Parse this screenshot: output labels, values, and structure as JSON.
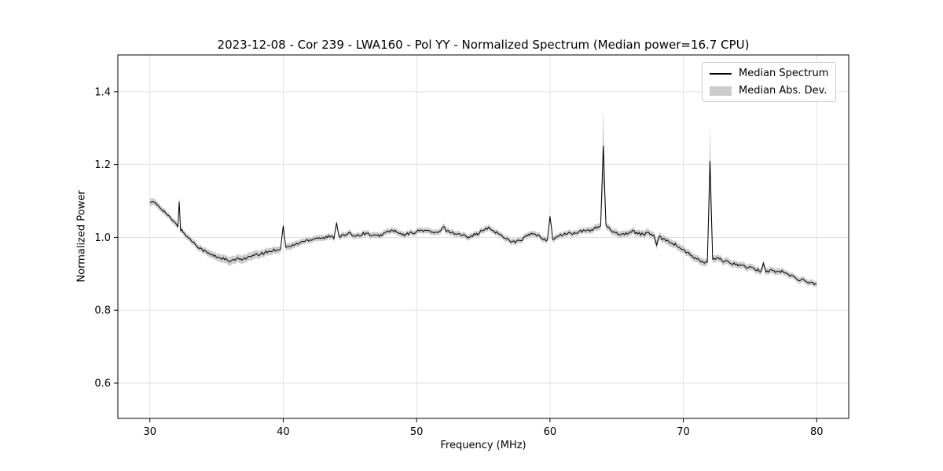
{
  "chart_data": {
    "type": "line",
    "title": "2023-12-08 - Cor 239 - LWA160 - Pol YY - Normalized Spectrum (Median power=16.7 CPU)",
    "xlabel": "Frequency (MHz)",
    "ylabel": "Normalized Power",
    "xlim": [
      27.6,
      82.4
    ],
    "ylim": [
      0.503,
      1.501
    ],
    "xticks": [
      30,
      40,
      50,
      60,
      70,
      80
    ],
    "xtick_labels": [
      "30",
      "40",
      "50",
      "60",
      "70",
      "80"
    ],
    "yticks": [
      0.6,
      0.8,
      1.0,
      1.2,
      1.4
    ],
    "ytick_labels": [
      "0.6",
      "0.8",
      "1.0",
      "1.2",
      "1.4"
    ],
    "grid": true,
    "line_color": "#000000",
    "band_color": "#cccccc",
    "grid_color": "#dcdcdc",
    "noise_amplitude": 0.004,
    "legend": {
      "position": "upper right",
      "entries": [
        {
          "label": "Median Spectrum",
          "type": "line",
          "color": "#000000"
        },
        {
          "label": "Median Abs. Dev.",
          "type": "patch",
          "color": "#cccccc"
        }
      ]
    },
    "series": [
      {
        "name": "Median Spectrum",
        "points": [
          [
            30.0,
            1.1,
            0.01
          ],
          [
            30.3,
            1.095,
            0.009
          ],
          [
            30.6,
            1.088,
            0.009
          ],
          [
            31.0,
            1.075,
            0.008
          ],
          [
            31.4,
            1.058,
            0.008
          ],
          [
            31.8,
            1.042,
            0.008
          ],
          [
            32.0,
            1.034,
            0.008
          ],
          [
            32.1,
            1.03,
            0.008
          ],
          [
            32.2,
            1.1,
            0.015
          ],
          [
            32.3,
            1.022,
            0.008
          ],
          [
            32.6,
            1.01,
            0.008
          ],
          [
            33.0,
            0.995,
            0.008
          ],
          [
            33.4,
            0.982,
            0.008
          ],
          [
            33.8,
            0.97,
            0.009
          ],
          [
            34.2,
            0.96,
            0.009
          ],
          [
            34.6,
            0.952,
            0.01
          ],
          [
            35.0,
            0.947,
            0.01
          ],
          [
            35.4,
            0.943,
            0.011
          ],
          [
            35.8,
            0.938,
            0.011
          ],
          [
            36.0,
            0.93,
            0.012
          ],
          [
            36.2,
            0.938,
            0.011
          ],
          [
            36.6,
            0.94,
            0.011
          ],
          [
            37.0,
            0.942,
            0.011
          ],
          [
            37.4,
            0.945,
            0.011
          ],
          [
            37.8,
            0.95,
            0.011
          ],
          [
            38.2,
            0.953,
            0.01
          ],
          [
            38.6,
            0.958,
            0.01
          ],
          [
            39.0,
            0.962,
            0.01
          ],
          [
            39.4,
            0.966,
            0.01
          ],
          [
            39.8,
            0.969,
            0.009
          ],
          [
            40.0,
            1.03,
            0.01
          ],
          [
            40.2,
            0.972,
            0.009
          ],
          [
            40.6,
            0.976,
            0.009
          ],
          [
            41.0,
            0.982,
            0.009
          ],
          [
            41.4,
            0.988,
            0.008
          ],
          [
            41.8,
            0.992,
            0.008
          ],
          [
            42.2,
            0.996,
            0.008
          ],
          [
            42.6,
            1.0,
            0.008
          ],
          [
            43.0,
            0.998,
            0.008
          ],
          [
            43.4,
            1.002,
            0.008
          ],
          [
            43.8,
            1.0,
            0.008
          ],
          [
            44.0,
            1.04,
            0.008
          ],
          [
            44.2,
            1.003,
            0.008
          ],
          [
            44.6,
            1.006,
            0.008
          ],
          [
            45.0,
            1.01,
            0.008
          ],
          [
            45.4,
            1.005,
            0.008
          ],
          [
            45.8,
            1.008,
            0.008
          ],
          [
            46.2,
            1.012,
            0.008
          ],
          [
            46.6,
            1.006,
            0.008
          ],
          [
            47.0,
            1.003,
            0.008
          ],
          [
            47.4,
            1.008,
            0.008
          ],
          [
            47.8,
            1.015,
            0.008
          ],
          [
            48.2,
            1.02,
            0.008
          ],
          [
            48.6,
            1.012,
            0.008
          ],
          [
            49.0,
            1.006,
            0.008
          ],
          [
            49.4,
            1.01,
            0.008
          ],
          [
            49.8,
            1.014,
            0.008
          ],
          [
            50.2,
            1.018,
            0.008
          ],
          [
            50.6,
            1.02,
            0.008
          ],
          [
            51.0,
            1.016,
            0.008
          ],
          [
            51.4,
            1.012,
            0.008
          ],
          [
            51.8,
            1.015,
            0.008
          ],
          [
            52.0,
            1.032,
            0.009
          ],
          [
            52.2,
            1.02,
            0.008
          ],
          [
            52.6,
            1.014,
            0.008
          ],
          [
            53.0,
            1.01,
            0.008
          ],
          [
            53.4,
            1.006,
            0.008
          ],
          [
            53.8,
            1.003,
            0.008
          ],
          [
            54.2,
            1.006,
            0.008
          ],
          [
            54.6,
            1.01,
            0.008
          ],
          [
            55.0,
            1.02,
            0.008
          ],
          [
            55.4,
            1.025,
            0.008
          ],
          [
            55.8,
            1.018,
            0.008
          ],
          [
            56.2,
            1.008,
            0.008
          ],
          [
            56.6,
            1.0,
            0.008
          ],
          [
            57.0,
            0.992,
            0.008
          ],
          [
            57.4,
            0.987,
            0.008
          ],
          [
            57.8,
            0.992,
            0.008
          ],
          [
            58.2,
            1.002,
            0.008
          ],
          [
            58.6,
            1.01,
            0.008
          ],
          [
            59.0,
            1.006,
            0.008
          ],
          [
            59.4,
            0.998,
            0.008
          ],
          [
            59.8,
            0.993,
            0.008
          ],
          [
            60.0,
            1.058,
            0.01
          ],
          [
            60.2,
            0.996,
            0.008
          ],
          [
            60.6,
            1.002,
            0.008
          ],
          [
            61.0,
            1.008,
            0.008
          ],
          [
            61.4,
            1.012,
            0.008
          ],
          [
            61.8,
            1.01,
            0.008
          ],
          [
            62.2,
            1.015,
            0.008
          ],
          [
            62.6,
            1.018,
            0.008
          ],
          [
            63.0,
            1.02,
            0.009
          ],
          [
            63.4,
            1.025,
            0.009
          ],
          [
            63.8,
            1.032,
            0.01
          ],
          [
            64.0,
            1.248,
            0.1
          ],
          [
            64.2,
            1.03,
            0.01
          ],
          [
            64.6,
            1.02,
            0.009
          ],
          [
            65.0,
            1.012,
            0.009
          ],
          [
            65.4,
            1.008,
            0.009
          ],
          [
            65.8,
            1.012,
            0.009
          ],
          [
            66.2,
            1.016,
            0.009
          ],
          [
            66.6,
            1.012,
            0.009
          ],
          [
            67.0,
            1.008,
            0.01
          ],
          [
            67.4,
            1.012,
            0.01
          ],
          [
            67.8,
            1.005,
            0.01
          ],
          [
            68.0,
            0.978,
            0.012
          ],
          [
            68.2,
            1.0,
            0.01
          ],
          [
            68.6,
            0.995,
            0.01
          ],
          [
            69.0,
            0.988,
            0.01
          ],
          [
            69.4,
            0.98,
            0.01
          ],
          [
            69.8,
            0.97,
            0.01
          ],
          [
            70.2,
            0.96,
            0.01
          ],
          [
            70.6,
            0.95,
            0.01
          ],
          [
            71.0,
            0.94,
            0.01
          ],
          [
            71.4,
            0.933,
            0.01
          ],
          [
            71.8,
            0.93,
            0.01
          ],
          [
            72.0,
            1.21,
            0.1
          ],
          [
            72.2,
            0.938,
            0.01
          ],
          [
            72.6,
            0.942,
            0.009
          ],
          [
            73.0,
            0.936,
            0.009
          ],
          [
            73.4,
            0.93,
            0.009
          ],
          [
            73.8,
            0.928,
            0.009
          ],
          [
            74.2,
            0.924,
            0.009
          ],
          [
            74.6,
            0.92,
            0.009
          ],
          [
            75.0,
            0.916,
            0.009
          ],
          [
            75.4,
            0.912,
            0.009
          ],
          [
            75.8,
            0.908,
            0.009
          ],
          [
            76.0,
            0.928,
            0.01
          ],
          [
            76.2,
            0.906,
            0.009
          ],
          [
            76.6,
            0.91,
            0.009
          ],
          [
            77.0,
            0.904,
            0.009
          ],
          [
            77.4,
            0.908,
            0.008
          ],
          [
            77.8,
            0.898,
            0.008
          ],
          [
            78.2,
            0.893,
            0.008
          ],
          [
            78.6,
            0.886,
            0.008
          ],
          [
            79.0,
            0.882,
            0.008
          ],
          [
            79.4,
            0.877,
            0.008
          ],
          [
            79.8,
            0.873,
            0.008
          ],
          [
            80.0,
            0.872,
            0.008
          ]
        ]
      }
    ]
  }
}
